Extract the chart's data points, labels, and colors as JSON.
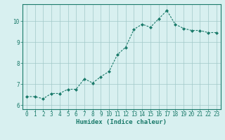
{
  "x": [
    0,
    1,
    2,
    3,
    4,
    5,
    6,
    7,
    8,
    9,
    10,
    11,
    12,
    13,
    14,
    15,
    16,
    17,
    18,
    19,
    20,
    21,
    22,
    23
  ],
  "y": [
    6.4,
    6.4,
    6.3,
    6.55,
    6.55,
    6.75,
    6.75,
    7.25,
    7.05,
    7.35,
    7.6,
    8.4,
    8.75,
    9.6,
    9.85,
    9.7,
    10.1,
    10.5,
    9.85,
    9.65,
    9.55,
    9.55,
    9.45,
    9.45
  ],
  "line_color": "#1a7a6a",
  "marker": "D",
  "markersize": 2.0,
  "linewidth": 0.8,
  "xlabel": "Humidex (Indice chaleur)",
  "bg_color": "#d8f0f0",
  "grid_color": "#a0c8c8",
  "ylim": [
    5.8,
    10.8
  ],
  "xlim": [
    -0.5,
    23.5
  ],
  "yticks": [
    6,
    7,
    8,
    9,
    10
  ],
  "xticks": [
    0,
    1,
    2,
    3,
    4,
    5,
    6,
    7,
    8,
    9,
    10,
    11,
    12,
    13,
    14,
    15,
    16,
    17,
    18,
    19,
    20,
    21,
    22,
    23
  ],
  "tick_color": "#1a7a6a",
  "xlabel_fontsize": 6.5,
  "tick_fontsize": 5.5,
  "spine_color": "#1a7a6a"
}
